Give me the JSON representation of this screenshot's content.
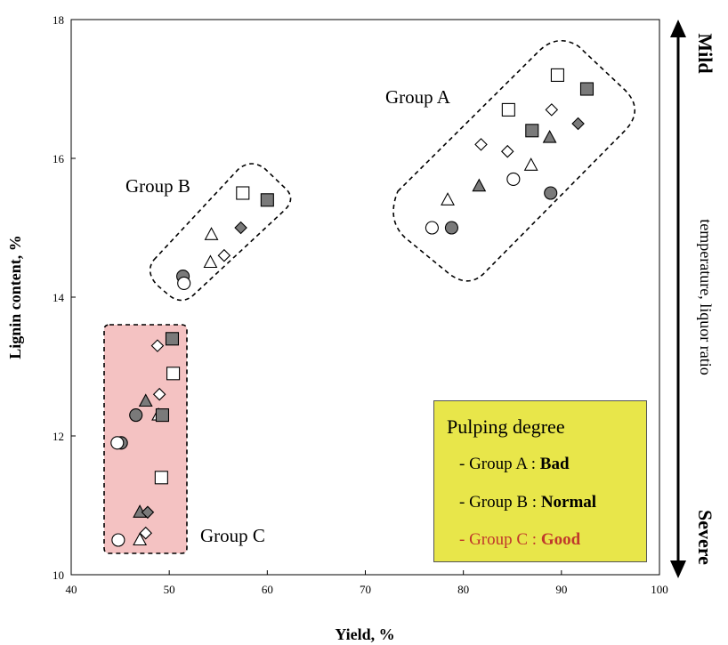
{
  "chart_data": {
    "type": "scatter",
    "xlabel": "Yield, %",
    "ylabel": "Lignin content, %",
    "xlim": [
      40,
      100
    ],
    "ylim": [
      10,
      18
    ],
    "xticks": [
      "40",
      "50",
      "60",
      "70",
      "80",
      "90",
      "100"
    ],
    "yticks": [
      "10",
      "12",
      "14",
      "16",
      "18"
    ],
    "grid": false,
    "groups": [
      {
        "label": "Group A"
      },
      {
        "label": "Group B"
      },
      {
        "label": "Group C"
      }
    ],
    "points": [
      {
        "x": 89.6,
        "y": 17.2,
        "marker": "square",
        "fill": "open",
        "group": "A"
      },
      {
        "x": 92.6,
        "y": 17.0,
        "marker": "square",
        "fill": "filled",
        "group": "A"
      },
      {
        "x": 84.6,
        "y": 16.7,
        "marker": "square",
        "fill": "open",
        "group": "A"
      },
      {
        "x": 89.0,
        "y": 16.7,
        "marker": "diamond",
        "fill": "open",
        "group": "A"
      },
      {
        "x": 91.7,
        "y": 16.5,
        "marker": "diamond",
        "fill": "filled",
        "group": "A"
      },
      {
        "x": 87.0,
        "y": 16.4,
        "marker": "square",
        "fill": "filled",
        "group": "A"
      },
      {
        "x": 88.8,
        "y": 16.3,
        "marker": "triangle",
        "fill": "filled",
        "group": "A"
      },
      {
        "x": 81.8,
        "y": 16.2,
        "marker": "diamond",
        "fill": "open",
        "group": "A"
      },
      {
        "x": 84.5,
        "y": 16.1,
        "marker": "diamond",
        "fill": "open",
        "group": "A"
      },
      {
        "x": 86.9,
        "y": 15.9,
        "marker": "triangle",
        "fill": "open",
        "group": "A"
      },
      {
        "x": 85.1,
        "y": 15.7,
        "marker": "circle",
        "fill": "open",
        "group": "A"
      },
      {
        "x": 81.6,
        "y": 15.6,
        "marker": "triangle",
        "fill": "filled",
        "group": "A"
      },
      {
        "x": 88.9,
        "y": 15.5,
        "marker": "circle",
        "fill": "filled",
        "group": "A"
      },
      {
        "x": 78.4,
        "y": 15.4,
        "marker": "triangle",
        "fill": "open",
        "group": "A"
      },
      {
        "x": 76.8,
        "y": 15.0,
        "marker": "circle",
        "fill": "open",
        "group": "A"
      },
      {
        "x": 78.8,
        "y": 15.0,
        "marker": "circle",
        "fill": "filled",
        "group": "A"
      },
      {
        "x": 57.5,
        "y": 15.5,
        "marker": "square",
        "fill": "open",
        "group": "B"
      },
      {
        "x": 60.0,
        "y": 15.4,
        "marker": "square",
        "fill": "filled",
        "group": "B"
      },
      {
        "x": 57.3,
        "y": 15.0,
        "marker": "diamond",
        "fill": "filled",
        "group": "B"
      },
      {
        "x": 54.3,
        "y": 14.9,
        "marker": "triangle",
        "fill": "open",
        "group": "B"
      },
      {
        "x": 55.6,
        "y": 14.6,
        "marker": "diamond",
        "fill": "open",
        "group": "B"
      },
      {
        "x": 54.2,
        "y": 14.5,
        "marker": "triangle",
        "fill": "open",
        "group": "B"
      },
      {
        "x": 51.4,
        "y": 14.3,
        "marker": "circle",
        "fill": "filled",
        "group": "B"
      },
      {
        "x": 51.5,
        "y": 14.2,
        "marker": "circle",
        "fill": "open",
        "group": "B"
      },
      {
        "x": 50.3,
        "y": 13.4,
        "marker": "square",
        "fill": "filled",
        "group": "C"
      },
      {
        "x": 48.8,
        "y": 13.3,
        "marker": "diamond",
        "fill": "open",
        "group": "C"
      },
      {
        "x": 50.4,
        "y": 12.9,
        "marker": "square",
        "fill": "open",
        "group": "C"
      },
      {
        "x": 49.0,
        "y": 12.6,
        "marker": "diamond",
        "fill": "open",
        "group": "C"
      },
      {
        "x": 47.6,
        "y": 12.5,
        "marker": "triangle",
        "fill": "filled",
        "group": "C"
      },
      {
        "x": 46.6,
        "y": 12.3,
        "marker": "circle",
        "fill": "filled",
        "group": "C"
      },
      {
        "x": 48.9,
        "y": 12.3,
        "marker": "triangle",
        "fill": "open",
        "group": "C"
      },
      {
        "x": 49.3,
        "y": 12.3,
        "marker": "square",
        "fill": "filled",
        "group": "C"
      },
      {
        "x": 45.1,
        "y": 11.9,
        "marker": "circle",
        "fill": "filled",
        "group": "C"
      },
      {
        "x": 44.7,
        "y": 11.9,
        "marker": "circle",
        "fill": "open",
        "group": "C"
      },
      {
        "x": 49.2,
        "y": 11.4,
        "marker": "square",
        "fill": "open",
        "group": "C"
      },
      {
        "x": 47.0,
        "y": 10.9,
        "marker": "triangle",
        "fill": "filled",
        "group": "C"
      },
      {
        "x": 47.8,
        "y": 10.9,
        "marker": "diamond",
        "fill": "filled",
        "group": "C"
      },
      {
        "x": 47.6,
        "y": 10.6,
        "marker": "diamond",
        "fill": "open",
        "group": "C"
      },
      {
        "x": 44.8,
        "y": 10.5,
        "marker": "circle",
        "fill": "open",
        "group": "C"
      },
      {
        "x": 47.0,
        "y": 10.5,
        "marker": "triangle",
        "fill": "open",
        "group": "C"
      }
    ]
  },
  "side_axis": {
    "top_label": "Mild",
    "bottom_label": "Severe",
    "middle_label": "temperature, liquor ratio"
  },
  "legend": {
    "title": "Pulping degree",
    "rows": [
      {
        "prefix": "- Group A : ",
        "value": "Bad"
      },
      {
        "prefix": "- Group B : ",
        "value": "Normal"
      },
      {
        "prefix": "- Group C : ",
        "value": "Good"
      }
    ]
  },
  "colors": {
    "marker_fill": "#7a7a7a",
    "marker_stroke": "#000000",
    "group_c_region": "#f4c2c2",
    "legend_bg": "#e8e64a",
    "good_text": "#c0392b"
  }
}
